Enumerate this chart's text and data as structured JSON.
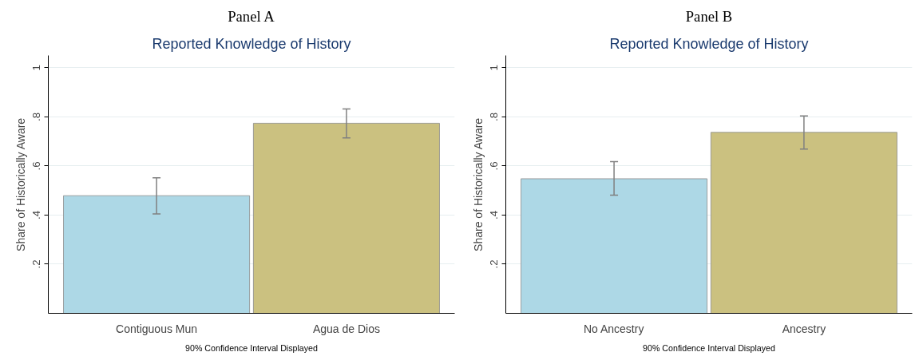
{
  "chart_data": [
    {
      "type": "bar",
      "title": "Panel A",
      "subtitle": "Reported Knowledge of History",
      "ylabel": "Share of Historically Aware",
      "annotations": [
        "90% Confidence Interval Displayed"
      ],
      "categories": [
        "Contiguous Mun",
        "Agua de Dios"
      ],
      "values": [
        0.479,
        0.774
      ],
      "colors": [
        "#add8e6",
        "#cbc180"
      ],
      "errors": [
        [
          0.405,
          0.552
        ],
        [
          0.714,
          0.832
        ]
      ],
      "ylim": [
        0,
        1.05
      ],
      "yticks": [
        {
          "value": 0.2,
          "label": ".2"
        },
        {
          "value": 0.4,
          "label": ".4"
        },
        {
          "value": 0.6,
          "label": ".6"
        },
        {
          "value": 0.8,
          "label": ".8"
        },
        1
      ],
      "grid": "y"
    },
    {
      "type": "bar",
      "title": "Panel B",
      "subtitle": "Reported Knowledge of History",
      "ylabel": "Share of Historically Aware",
      "annotations": [
        "90% Confidence Interval Displayed"
      ],
      "categories": [
        "No Ancestry",
        "Ancestry"
      ],
      "values": [
        0.548,
        0.737
      ],
      "colors": [
        "#add8e6",
        "#cbc180"
      ],
      "errors": [
        [
          0.481,
          0.618
        ],
        [
          0.669,
          0.804
        ]
      ],
      "ylim": [
        0,
        1.05
      ],
      "yticks": [
        {
          "value": 0.2,
          "label": ".2"
        },
        {
          "value": 0.4,
          "label": ".4"
        },
        {
          "value": 0.6,
          "label": ".6"
        },
        {
          "value": 0.8,
          "label": ".8"
        },
        1
      ],
      "grid": "y"
    }
  ]
}
